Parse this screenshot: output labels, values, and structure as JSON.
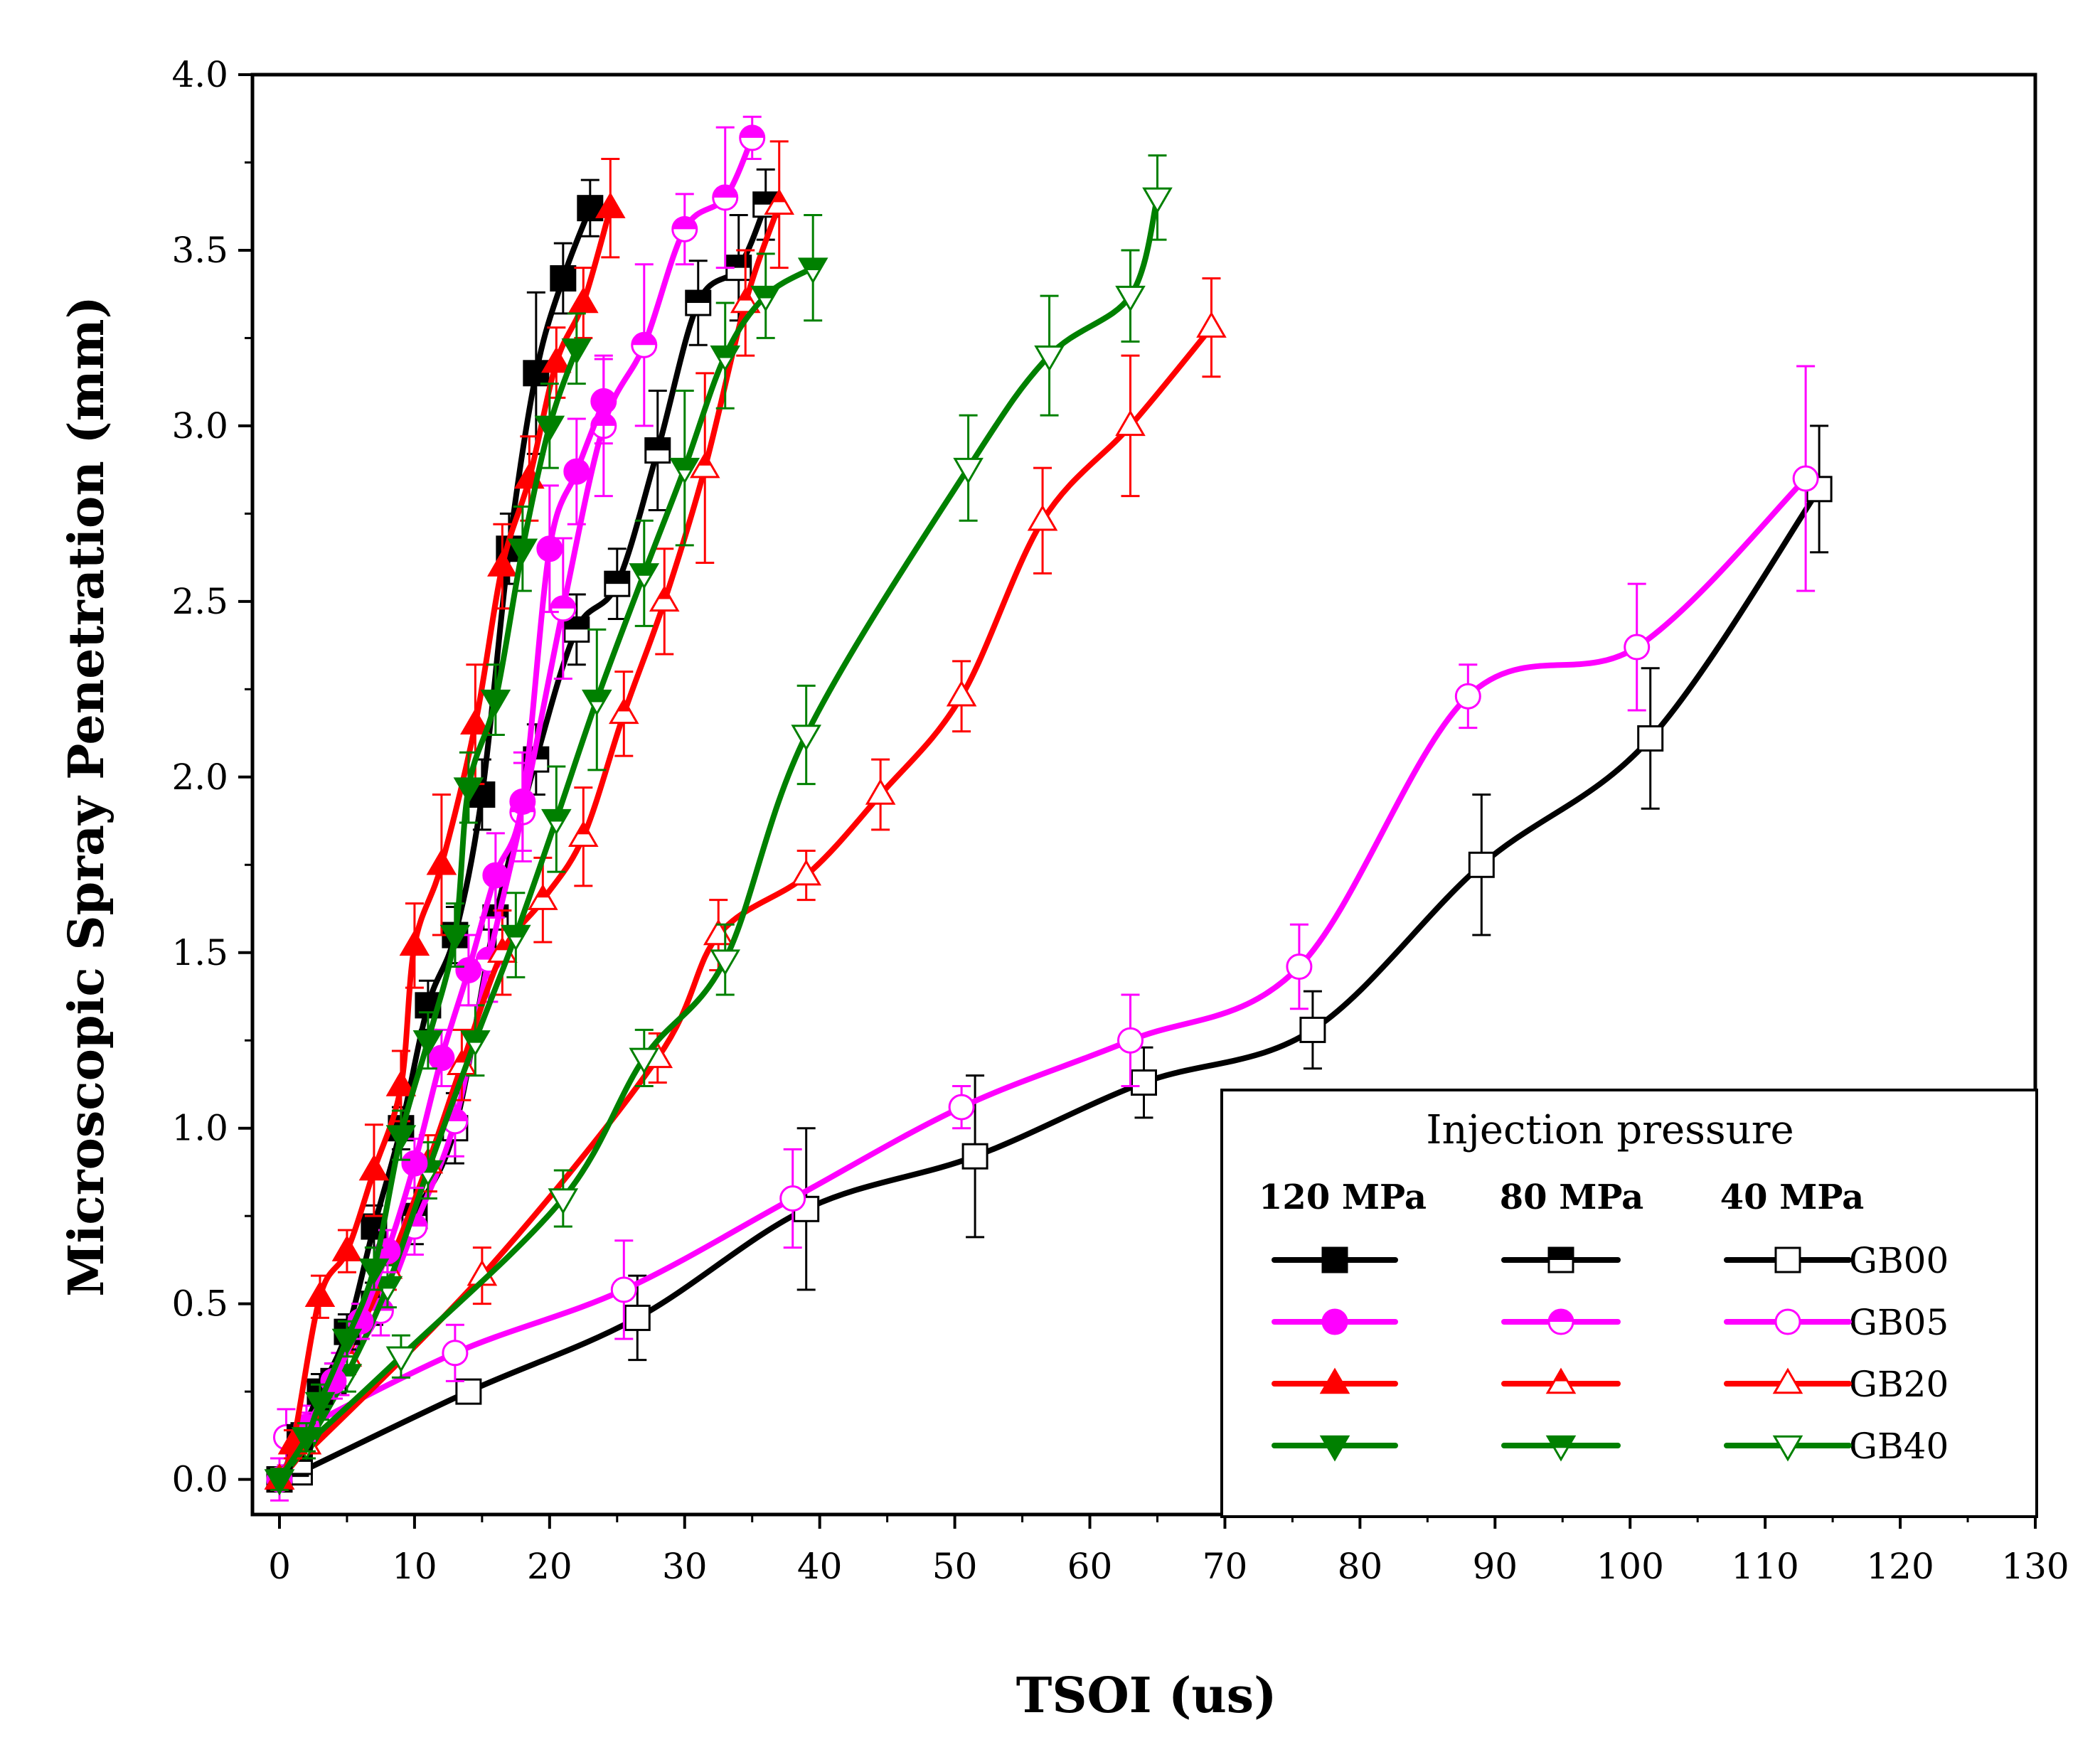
{
  "chart_data": {
    "type": "line",
    "title": "",
    "xlabel": "TSOI (us)",
    "ylabel": "Microscopic Spray Penetration (mm)",
    "xlim": [
      -2,
      130
    ],
    "ylim": [
      -0.1,
      4.0
    ],
    "xticks": [
      0,
      10,
      20,
      30,
      40,
      50,
      60,
      70,
      80,
      90,
      100,
      110,
      120,
      130
    ],
    "yticks": [
      "0.0",
      "0.5",
      "1.0",
      "1.5",
      "2.0",
      "2.5",
      "3.0",
      "3.5",
      "4.0"
    ],
    "grid": false,
    "legend": {
      "title": "Injection pressure",
      "placement": "bottom-right",
      "pressure_headers": [
        "120 MPa",
        "80 MPa",
        "40 MPa"
      ],
      "fuels": [
        "GB00",
        "GB05",
        "GB20",
        "GB40"
      ]
    },
    "colors": {
      "GB00": "#000000",
      "GB05": "#ff00ff",
      "GB20": "#ff0000",
      "GB40": "#008000"
    },
    "series": [
      {
        "name": "GB00 120 MPa",
        "fuel": "GB00",
        "pressure": "120 MPa",
        "marker": "square",
        "filled": true,
        "x": [
          0,
          1.5,
          3,
          5,
          7,
          9,
          11,
          13,
          15,
          17,
          19,
          21,
          23
        ],
        "y": [
          0.0,
          0.12,
          0.25,
          0.42,
          0.72,
          1.0,
          1.35,
          1.55,
          1.95,
          2.65,
          3.15,
          3.42,
          3.62
        ],
        "err": [
          0.03,
          0.04,
          0.05,
          0.05,
          0.06,
          0.06,
          0.07,
          0.08,
          0.1,
          0.1,
          0.23,
          0.1,
          0.08
        ]
      },
      {
        "name": "GB05 120 MPa",
        "fuel": "GB05",
        "pressure": "120 MPa",
        "marker": "circle",
        "filled": true,
        "x": [
          0,
          2,
          4,
          6,
          8,
          10,
          12,
          14,
          16,
          18,
          20,
          22,
          24
        ],
        "y": [
          0.0,
          0.15,
          0.28,
          0.45,
          0.65,
          0.9,
          1.2,
          1.45,
          1.72,
          1.93,
          2.65,
          2.87,
          3.07
        ],
        "err": [
          0.03,
          0.04,
          0.05,
          0.05,
          0.06,
          0.07,
          0.08,
          0.1,
          0.12,
          0.14,
          0.18,
          0.15,
          0.12
        ]
      },
      {
        "name": "GB20 120 MPa",
        "fuel": "GB20",
        "pressure": "120 MPa",
        "marker": "triangle-up",
        "filled": true,
        "x": [
          0,
          1,
          3,
          5,
          7,
          9,
          10,
          12,
          14.5,
          16.5,
          18.5,
          20.5,
          22.5,
          24.5
        ],
        "y": [
          0.0,
          0.1,
          0.52,
          0.65,
          0.88,
          1.12,
          1.52,
          1.75,
          2.15,
          2.6,
          2.85,
          3.18,
          3.35,
          3.62
        ],
        "err": [
          0.03,
          0.04,
          0.06,
          0.06,
          0.13,
          0.1,
          0.12,
          0.2,
          0.17,
          0.12,
          0.12,
          0.1,
          0.1,
          0.14
        ]
      },
      {
        "name": "GB40 120 MPa",
        "fuel": "GB40",
        "pressure": "120 MPa",
        "marker": "triangle-down",
        "filled": true,
        "x": [
          0,
          2,
          3,
          5,
          7,
          9,
          11,
          13,
          14,
          16,
          18,
          20,
          22
        ],
        "y": [
          0.0,
          0.12,
          0.22,
          0.4,
          0.6,
          0.98,
          1.25,
          1.55,
          1.97,
          2.22,
          2.65,
          3.0,
          3.22
        ],
        "err": [
          0.03,
          0.04,
          0.05,
          0.05,
          0.06,
          0.07,
          0.08,
          0.09,
          0.1,
          0.1,
          0.12,
          0.12,
          0.1
        ]
      },
      {
        "name": "GB00 80 MPa",
        "fuel": "GB00",
        "pressure": "80 MPa",
        "marker": "square",
        "filled": "half",
        "x": [
          0,
          1.5,
          4,
          7,
          10,
          13,
          16,
          19,
          22,
          25,
          28,
          31,
          34,
          36
        ],
        "y": [
          0.0,
          0.05,
          0.28,
          0.5,
          0.75,
          1.0,
          1.6,
          2.05,
          2.42,
          2.55,
          2.93,
          3.35,
          3.45,
          3.63
        ],
        "err": [
          0.03,
          0.04,
          0.05,
          0.06,
          0.08,
          0.1,
          0.12,
          0.1,
          0.1,
          0.1,
          0.17,
          0.12,
          0.15,
          0.1
        ]
      },
      {
        "name": "GB05 80 MPa",
        "fuel": "GB05",
        "pressure": "80 MPa",
        "marker": "circle",
        "filled": "half",
        "x": [
          0,
          2,
          4.5,
          7.5,
          10,
          13,
          15.5,
          18,
          21,
          24,
          27,
          30,
          33,
          35
        ],
        "y": [
          0.0,
          0.15,
          0.3,
          0.48,
          0.72,
          1.02,
          1.48,
          1.9,
          2.48,
          3.0,
          3.23,
          3.56,
          3.65,
          3.82
        ],
        "err": [
          0.06,
          0.06,
          0.06,
          0.07,
          0.08,
          0.1,
          0.12,
          0.14,
          0.2,
          0.2,
          0.23,
          0.1,
          0.2,
          0.06
        ]
      },
      {
        "name": "GB20 80 MPa",
        "fuel": "GB20",
        "pressure": "80 MPa",
        "marker": "triangle-up",
        "filled": "half",
        "x": [
          0,
          2,
          5,
          8,
          11,
          13.5,
          16.5,
          19.5,
          22.5,
          25.5,
          28.5,
          31.5,
          34.5,
          37
        ],
        "y": [
          0.0,
          0.1,
          0.35,
          0.6,
          0.9,
          1.18,
          1.5,
          1.65,
          1.83,
          2.18,
          2.5,
          2.88,
          3.35,
          3.63
        ],
        "err": [
          0.03,
          0.04,
          0.05,
          0.06,
          0.08,
          0.1,
          0.12,
          0.12,
          0.14,
          0.12,
          0.15,
          0.27,
          0.15,
          0.18
        ]
      },
      {
        "name": "GB40 80 MPa",
        "fuel": "GB40",
        "pressure": "80 MPa",
        "marker": "triangle-down",
        "filled": "half",
        "x": [
          0,
          2,
          5,
          8,
          11,
          14.5,
          17.5,
          20.5,
          23.5,
          27,
          30,
          33,
          36,
          39.5
        ],
        "y": [
          0.0,
          0.1,
          0.3,
          0.55,
          0.88,
          1.25,
          1.55,
          1.88,
          2.22,
          2.58,
          2.88,
          3.2,
          3.37,
          3.45
        ],
        "err": [
          0.03,
          0.04,
          0.05,
          0.06,
          0.08,
          0.1,
          0.12,
          0.15,
          0.2,
          0.15,
          0.22,
          0.15,
          0.12,
          0.15
        ]
      },
      {
        "name": "GB00 40 MPa",
        "fuel": "GB00",
        "pressure": "40 MPa",
        "marker": "square",
        "filled": false,
        "x": [
          1.5,
          14,
          26.5,
          39,
          51.5,
          64,
          76.5,
          89,
          101.5,
          114
        ],
        "y": [
          0.02,
          0.25,
          0.46,
          0.77,
          0.92,
          1.13,
          1.28,
          1.75,
          2.11,
          2.82
        ],
        "err": [
          0.02,
          0.03,
          0.12,
          0.23,
          0.23,
          0.1,
          0.11,
          0.2,
          0.2,
          0.18
        ]
      },
      {
        "name": "GB05 40 MPa",
        "fuel": "GB05",
        "pressure": "40 MPa",
        "marker": "circle",
        "filled": false,
        "x": [
          0.5,
          13,
          25.5,
          38,
          50.5,
          63,
          75.5,
          88,
          100.5,
          113
        ],
        "y": [
          0.12,
          0.36,
          0.54,
          0.8,
          1.06,
          1.25,
          1.46,
          2.23,
          2.37,
          2.85
        ],
        "err": [
          0.08,
          0.08,
          0.14,
          0.14,
          0.06,
          0.13,
          0.12,
          0.09,
          0.18,
          0.32
        ]
      },
      {
        "name": "GB20 40 MPa",
        "fuel": "GB20",
        "pressure": "40 MPa",
        "marker": "triangle-up",
        "filled": false,
        "x": [
          0,
          15,
          28,
          32.5,
          39,
          44.5,
          50.5,
          56.5,
          63,
          69
        ],
        "y": [
          0.0,
          0.58,
          1.2,
          1.55,
          1.72,
          1.95,
          2.23,
          2.73,
          3.0,
          3.28
        ],
        "err": [
          0.03,
          0.08,
          0.07,
          0.1,
          0.07,
          0.1,
          0.1,
          0.15,
          0.2,
          0.14
        ]
      },
      {
        "name": "GB40 40 MPa",
        "fuel": "GB40",
        "pressure": "40 MPa",
        "marker": "triangle-down",
        "filled": false,
        "x": [
          2,
          9,
          21,
          27,
          33,
          39,
          51,
          57,
          63,
          65
        ],
        "y": [
          0.1,
          0.35,
          0.8,
          1.2,
          1.48,
          2.12,
          2.88,
          3.2,
          3.37,
          3.65
        ],
        "err": [
          0.04,
          0.06,
          0.08,
          0.08,
          0.1,
          0.14,
          0.15,
          0.17,
          0.13,
          0.12
        ]
      }
    ]
  }
}
